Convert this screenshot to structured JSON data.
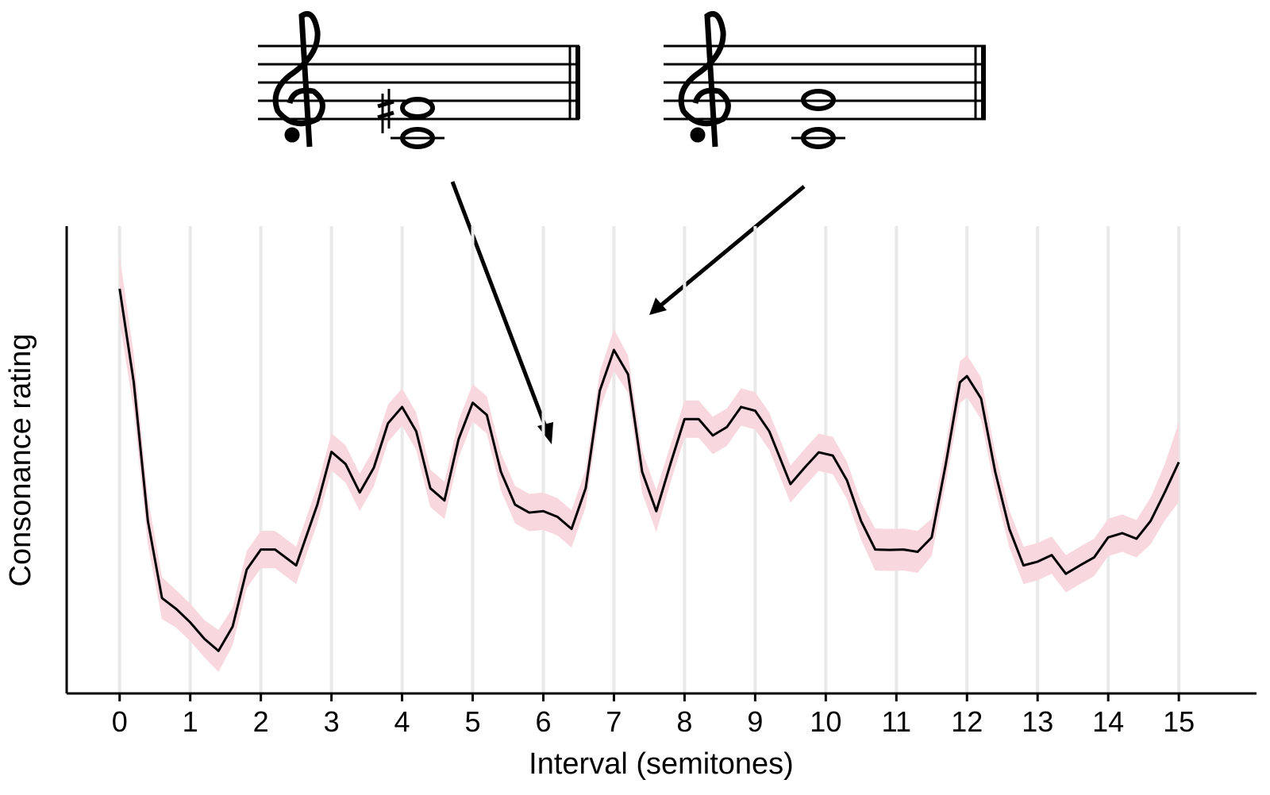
{
  "chart_data": {
    "type": "line",
    "xlabel": "Interval (semitones)",
    "ylabel": "Consonance rating",
    "x": [
      0,
      0.2,
      0.4,
      0.6,
      0.8,
      1.0,
      1.2,
      1.4,
      1.6,
      1.8,
      2.0,
      2.2,
      2.5,
      2.8,
      3.0,
      3.2,
      3.4,
      3.6,
      3.8,
      4.0,
      4.2,
      4.4,
      4.6,
      4.8,
      5.0,
      5.2,
      5.4,
      5.6,
      5.8,
      6.0,
      6.2,
      6.4,
      6.6,
      6.8,
      7.0,
      7.2,
      7.4,
      7.6,
      7.8,
      8.0,
      8.2,
      8.4,
      8.6,
      8.8,
      9.0,
      9.2,
      9.5,
      9.7,
      9.9,
      10.1,
      10.3,
      10.5,
      10.7,
      10.9,
      11.1,
      11.3,
      11.5,
      11.7,
      11.9,
      12.0,
      12.2,
      12.4,
      12.6,
      12.8,
      13.0,
      13.2,
      13.4,
      13.6,
      13.8,
      14.0,
      14.2,
      14.4,
      14.6,
      14.8,
      15.0
    ],
    "series": [
      {
        "color": "#000000",
        "band_color": "#f8d7df",
        "values": [
          0.866,
          0.666,
          0.369,
          0.204,
          0.181,
          0.152,
          0.117,
          0.091,
          0.143,
          0.265,
          0.308,
          0.308,
          0.274,
          0.404,
          0.517,
          0.491,
          0.43,
          0.483,
          0.578,
          0.613,
          0.561,
          0.439,
          0.413,
          0.544,
          0.622,
          0.596,
          0.474,
          0.404,
          0.387,
          0.39,
          0.378,
          0.352,
          0.439,
          0.648,
          0.735,
          0.683,
          0.474,
          0.39,
          0.491,
          0.587,
          0.587,
          0.552,
          0.57,
          0.613,
          0.605,
          0.561,
          0.448,
          0.483,
          0.516,
          0.509,
          0.456,
          0.369,
          0.308,
          0.307,
          0.308,
          0.303,
          0.334,
          0.491,
          0.666,
          0.679,
          0.631,
          0.474,
          0.352,
          0.274,
          0.282,
          0.296,
          0.256,
          0.274,
          0.291,
          0.334,
          0.343,
          0.331,
          0.369,
          0.43,
          0.495
        ],
        "error": [
          0.07,
          0.06,
          0.05,
          0.045,
          0.04,
          0.04,
          0.04,
          0.045,
          0.04,
          0.04,
          0.04,
          0.04,
          0.04,
          0.04,
          0.04,
          0.04,
          0.04,
          0.04,
          0.04,
          0.04,
          0.04,
          0.04,
          0.04,
          0.04,
          0.04,
          0.04,
          0.04,
          0.04,
          0.04,
          0.04,
          0.04,
          0.04,
          0.04,
          0.04,
          0.045,
          0.04,
          0.045,
          0.045,
          0.04,
          0.04,
          0.04,
          0.04,
          0.04,
          0.04,
          0.04,
          0.04,
          0.04,
          0.04,
          0.04,
          0.04,
          0.04,
          0.04,
          0.045,
          0.045,
          0.045,
          0.045,
          0.04,
          0.04,
          0.045,
          0.045,
          0.045,
          0.04,
          0.04,
          0.04,
          0.04,
          0.04,
          0.04,
          0.04,
          0.04,
          0.04,
          0.04,
          0.04,
          0.05,
          0.06,
          0.085
        ]
      }
    ],
    "xlim": [
      -0.75,
      16.1
    ],
    "xticks": [
      0,
      1,
      2,
      3,
      4,
      5,
      6,
      7,
      8,
      9,
      10,
      11,
      12,
      13,
      14,
      15
    ],
    "ylim": [
      0,
      1
    ],
    "grid": true
  }
}
